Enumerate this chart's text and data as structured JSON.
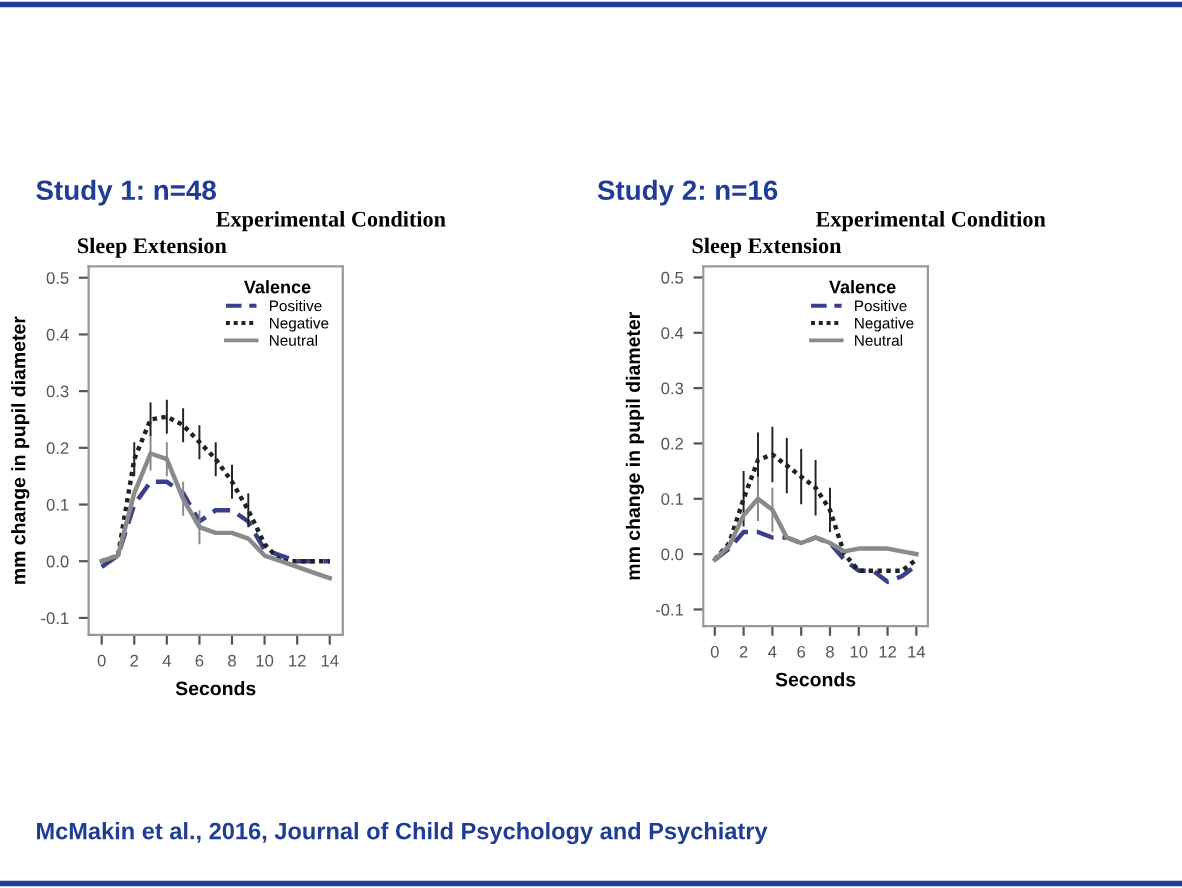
{
  "chart_data": [
    {
      "type": "line",
      "title": "Study 1: n=48",
      "subtitle": "Experimental Condition",
      "annotations": [
        "Sleep Extension",
        "McMakin et al., 2016, Journal of Child Psychology and Psychiatry"
      ],
      "xlabel": "Seconds",
      "ylabel": "mm change in pupil diameter",
      "legend_title": "Valence",
      "legend": "top right",
      "grid": false,
      "x": [
        0,
        1,
        2,
        3,
        4,
        5,
        6,
        7,
        8,
        9,
        10,
        11,
        12,
        13,
        14
      ],
      "xlim": [
        -0.8,
        14.8
      ],
      "xticks": [
        0,
        2,
        4,
        6,
        8,
        10,
        12,
        14
      ],
      "ylim": [
        -0.13,
        0.52
      ],
      "yticks": [
        -0.1,
        {
          "value": 0,
          "label": "0.0"
        },
        0.1,
        0.2,
        0.3,
        0.4,
        0.5
      ],
      "series": [
        {
          "name": "Positive",
          "color": "#3a3f8c",
          "line_style": "dashed",
          "values": [
            -0.01,
            0.01,
            0.1,
            0.14,
            0.14,
            0.12,
            0.07,
            0.09,
            0.09,
            0.07,
            0.02,
            0.01,
            0.0,
            0.0,
            0.0
          ]
        },
        {
          "name": "Negative",
          "color": "#222222",
          "line_style": "dotted",
          "values": [
            0.0,
            0.01,
            0.18,
            0.25,
            0.255,
            0.24,
            0.21,
            0.18,
            0.14,
            0.09,
            0.03,
            0.0,
            0.0,
            0.0,
            0.0
          ],
          "errors": [
            null,
            null,
            0.03,
            0.03,
            0.03,
            0.03,
            0.03,
            0.03,
            0.03,
            0.03,
            null,
            null,
            null,
            null,
            null
          ]
        },
        {
          "name": "Neutral",
          "color": "#8a8a8a",
          "line_style": "solid",
          "values": [
            0.0,
            0.01,
            0.12,
            0.19,
            0.18,
            0.11,
            0.06,
            0.05,
            0.05,
            0.04,
            0.01,
            0.0,
            -0.01,
            -0.02,
            -0.03
          ],
          "errors": [
            null,
            null,
            null,
            0.03,
            0.03,
            0.03,
            0.03,
            null,
            null,
            null,
            null,
            null,
            null,
            null,
            null
          ]
        }
      ]
    },
    {
      "type": "line",
      "title": "Study 2: n=16",
      "subtitle": "Experimental Condition",
      "annotations": [
        "Sleep Extension"
      ],
      "xlabel": "Seconds",
      "ylabel": "mm change in pupil diameter",
      "legend_title": "Valence",
      "legend": "top right",
      "grid": false,
      "x": [
        0,
        1,
        2,
        3,
        4,
        5,
        6,
        7,
        8,
        9,
        10,
        11,
        12,
        13,
        14
      ],
      "xlim": [
        -0.8,
        14.8
      ],
      "xticks": [
        0,
        2,
        4,
        6,
        8,
        10,
        12,
        14
      ],
      "ylim": [
        -0.13,
        0.52
      ],
      "yticks": [
        -0.1,
        {
          "value": 0,
          "label": "0.0"
        },
        0.1,
        0.2,
        0.3,
        0.4,
        0.5
      ],
      "series": [
        {
          "name": "Positive",
          "color": "#3a3f8c",
          "line_style": "dashed",
          "values": [
            -0.01,
            0.01,
            0.04,
            0.04,
            0.03,
            0.03,
            0.02,
            0.03,
            0.02,
            -0.01,
            -0.03,
            -0.03,
            -0.05,
            -0.04,
            -0.02
          ]
        },
        {
          "name": "Negative",
          "color": "#222222",
          "line_style": "dotted",
          "values": [
            -0.01,
            0.02,
            0.1,
            0.17,
            0.18,
            0.16,
            0.14,
            0.12,
            0.08,
            0.0,
            -0.03,
            -0.03,
            -0.03,
            -0.03,
            -0.01
          ],
          "errors": [
            null,
            null,
            0.05,
            0.05,
            0.05,
            0.05,
            0.05,
            0.05,
            0.04,
            null,
            null,
            null,
            null,
            null,
            null
          ]
        },
        {
          "name": "Neutral",
          "color": "#8a8a8a",
          "line_style": "solid",
          "values": [
            -0.01,
            0.015,
            0.07,
            0.1,
            0.08,
            0.03,
            0.02,
            0.03,
            0.02,
            0.005,
            0.01,
            0.01,
            0.01,
            0.005,
            0.0
          ],
          "errors": [
            null,
            null,
            null,
            0.04,
            0.04,
            null,
            null,
            null,
            null,
            null,
            null,
            null,
            null,
            null,
            null
          ]
        }
      ]
    }
  ]
}
